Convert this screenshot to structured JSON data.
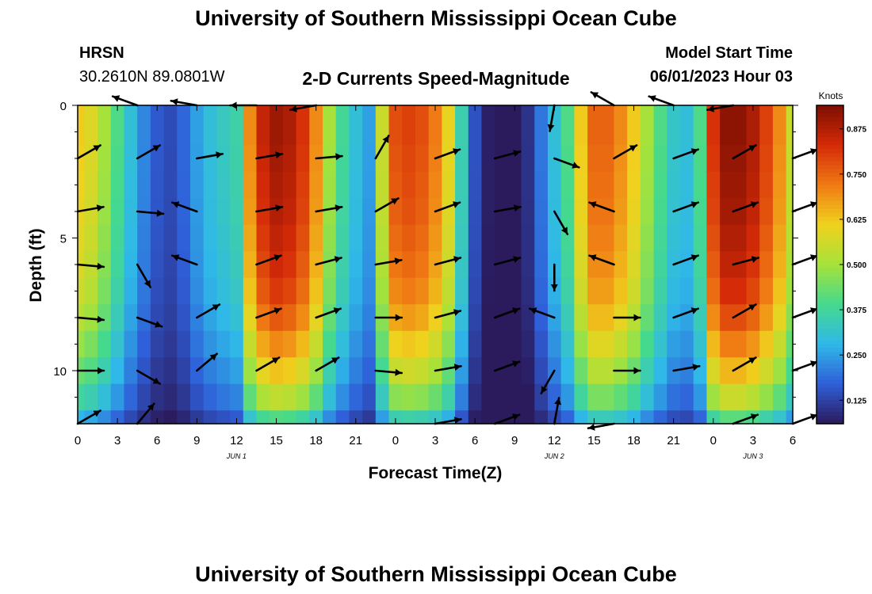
{
  "header": {
    "title": "University of Southern Mississippi Ocean Cube",
    "station": "HRSN",
    "location": "30.2610N  89.0801W",
    "plot_title": "2-D Currents Speed-Magnitude",
    "model_label": "Model Start Time",
    "model_time": "06/01/2023 Hour 03"
  },
  "footer": {
    "title": "University of Southern Mississippi Ocean Cube"
  },
  "colors": {
    "scale": [
      "#2b1a5c",
      "#2f5fd9",
      "#2fb8e8",
      "#45d98e",
      "#a6e23a",
      "#f0d21e",
      "#f07a14",
      "#d42a08",
      "#7d0f02"
    ],
    "arrow": "#000000"
  },
  "chart_data": {
    "type": "heatmap",
    "xlabel": "Forecast Time(Z)",
    "ylabel": "Depth (ft)",
    "x_hours": [
      0,
      54
    ],
    "xlim": [
      0,
      54
    ],
    "ylim": [
      0,
      12
    ],
    "x_tick_labels": [
      "0",
      "3",
      "6",
      "9",
      "12",
      "15",
      "18",
      "21",
      "0",
      "3",
      "6",
      "9",
      "12",
      "15",
      "18",
      "21",
      "0",
      "3",
      "6"
    ],
    "y_tick_values": [
      0,
      5,
      10
    ],
    "y_tick_labels": [
      "0",
      "5",
      "10"
    ],
    "date_labels": [
      {
        "label": "JUN 1",
        "hour": 12
      },
      {
        "label": "JUN 2",
        "hour": 36
      },
      {
        "label": "JUN 3",
        "hour": 51
      }
    ],
    "colorbar": {
      "label": "Knots",
      "min": 0.06,
      "max": 0.94,
      "tick_values": [
        0.125,
        0.25,
        0.375,
        0.5,
        0.625,
        0.75,
        0.875
      ],
      "tick_labels": [
        "0.125",
        "0.250",
        "0.375",
        "0.500",
        "0.625",
        "0.750",
        "0.875"
      ]
    },
    "depths": [
      0,
      1,
      2,
      3,
      4,
      5,
      6,
      7,
      8,
      9,
      10,
      11,
      12
    ],
    "speed_by_time": {
      "hours": [
        0,
        1,
        2,
        3,
        4,
        5,
        6,
        7,
        8,
        9,
        10,
        11,
        12,
        13,
        14,
        15,
        16,
        17,
        18,
        19,
        20,
        21,
        22,
        23,
        24,
        25,
        26,
        27,
        28,
        29,
        30,
        31,
        32,
        33,
        34,
        35,
        36,
        37,
        38,
        39,
        40,
        41,
        42,
        43,
        44,
        45,
        46,
        47,
        48,
        49,
        50,
        51,
        52,
        53,
        54
      ],
      "surface_speed": [
        0.62,
        0.58,
        0.5,
        0.4,
        0.3,
        0.22,
        0.16,
        0.14,
        0.18,
        0.25,
        0.3,
        0.33,
        0.36,
        0.7,
        0.85,
        0.9,
        0.88,
        0.82,
        0.7,
        0.5,
        0.38,
        0.3,
        0.25,
        0.55,
        0.78,
        0.8,
        0.78,
        0.72,
        0.6,
        0.35,
        0.15,
        0.07,
        0.05,
        0.06,
        0.1,
        0.2,
        0.3,
        0.4,
        0.62,
        0.75,
        0.75,
        0.7,
        0.62,
        0.5,
        0.4,
        0.32,
        0.3,
        0.4,
        0.82,
        0.92,
        0.92,
        0.88,
        0.8,
        0.7,
        0.55
      ],
      "depth_factor": [
        1.0,
        1.0,
        0.99,
        0.98,
        0.97,
        0.95,
        0.93,
        0.9,
        0.85,
        0.78,
        0.7,
        0.6,
        0.45
      ]
    },
    "vectors": {
      "hours": [
        0,
        4.5,
        9,
        13.5,
        18,
        22.5,
        27,
        31.5,
        36,
        40.5,
        45,
        49.5,
        54
      ],
      "depths": [
        0,
        2,
        4,
        6,
        8,
        10,
        12
      ],
      "angles_deg": [
        [
          null,
          200,
          190,
          180,
          170,
          null,
          null,
          null,
          100,
          210,
          200,
          170,
          null
        ],
        [
          -30,
          -30,
          -10,
          -10,
          -5,
          -60,
          -20,
          -15,
          20,
          -30,
          -20,
          -30,
          -20
        ],
        [
          -10,
          5,
          200,
          -10,
          -10,
          -30,
          -20,
          -10,
          60,
          200,
          -20,
          -20,
          -20
        ],
        [
          5,
          60,
          200,
          -20,
          -15,
          -10,
          -15,
          -15,
          90,
          200,
          -20,
          -15,
          -20
        ],
        [
          5,
          20,
          -30,
          -20,
          -20,
          0,
          -15,
          -20,
          200,
          0,
          -20,
          -30,
          -20
        ],
        [
          0,
          30,
          -40,
          -30,
          -30,
          5,
          -10,
          -20,
          120,
          0,
          -10,
          -30,
          -20
        ],
        [
          -30,
          -50,
          null,
          null,
          null,
          null,
          -10,
          -20,
          -80,
          170,
          null,
          -20,
          -20
        ]
      ]
    }
  }
}
